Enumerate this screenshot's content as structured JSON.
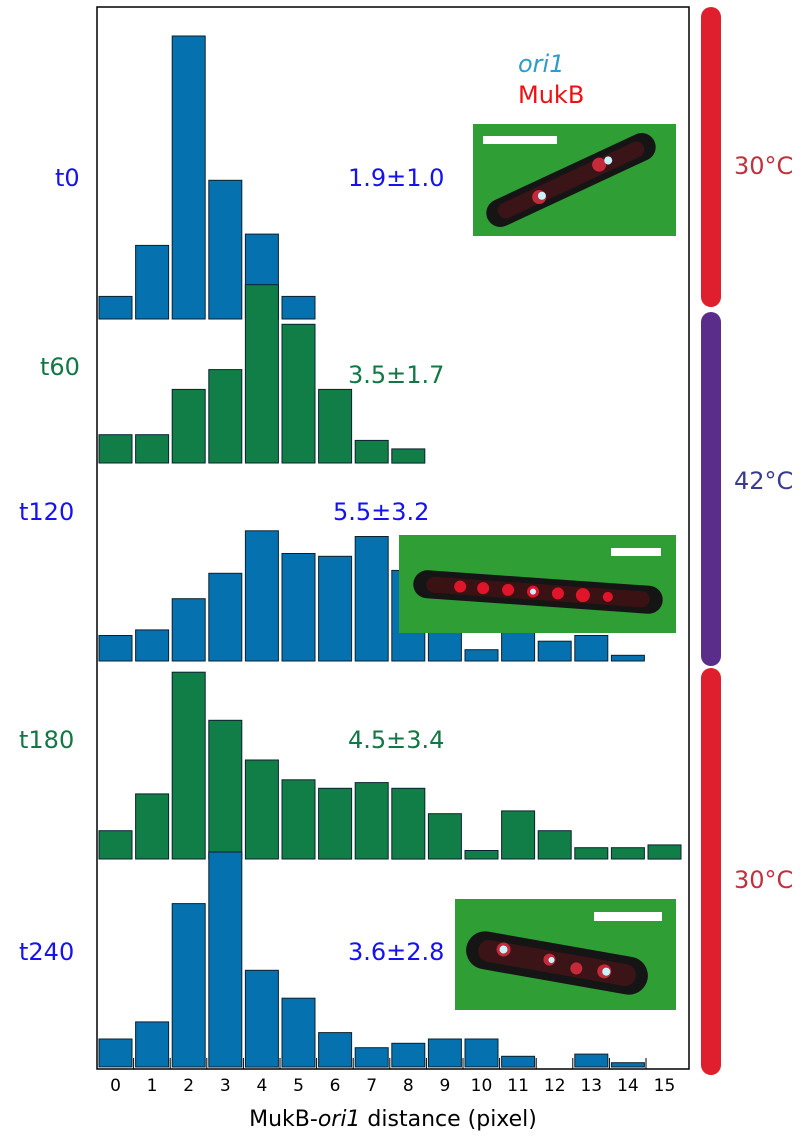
{
  "colors": {
    "blue_bar": "#0571ae",
    "green_bar": "#117d47",
    "blue_text": "#1412f0",
    "green_text": "#137745",
    "red_band": "#df1f2d",
    "purple_band": "#5a2d8a",
    "red_temp_text": "#c0313e",
    "purple_temp_text": "#3b3b8e",
    "ori1_text": "#2e9bc8",
    "mukb_text": "#ee1111",
    "micrograph_bg": "#2f9f35"
  },
  "legend": {
    "ori1": "ori1",
    "mukb": "MukB"
  },
  "xlabel": {
    "prefix": "MukB-",
    "italic": "ori1",
    "suffix": " distance (pixel)"
  },
  "temps": [
    {
      "label": "30°C",
      "color": "red"
    },
    {
      "label": "42°C",
      "color": "purple"
    },
    {
      "label": "30°C",
      "color": "red"
    }
  ],
  "chart_data": {
    "type": "bar",
    "categories": [
      "0",
      "1",
      "2",
      "3",
      "4",
      "5",
      "6",
      "7",
      "8",
      "9",
      "10",
      "11",
      "12",
      "13",
      "14",
      "15"
    ],
    "xlabel": "MukB-ori1 distance (pixel)",
    "series": [
      {
        "name": "t0",
        "stat": "1.9±1.0",
        "color": "blue",
        "values": [
          0.08,
          0.26,
          1.0,
          0.49,
          0.3,
          0.08,
          0,
          0,
          0,
          0,
          0,
          0,
          0,
          0,
          0,
          0
        ]
      },
      {
        "name": "t60",
        "stat": "3.5±1.7",
        "color": "green",
        "values": [
          0.1,
          0.1,
          0.26,
          0.33,
          0.63,
          0.49,
          0.26,
          0.08,
          0.05,
          0,
          0,
          0,
          0,
          0,
          0,
          0
        ]
      },
      {
        "name": "t120",
        "stat": "5.5±3.2",
        "color": "blue",
        "values": [
          0.09,
          0.11,
          0.22,
          0.31,
          0.46,
          0.38,
          0.37,
          0.44,
          0.32,
          0.19,
          0.04,
          0.17,
          0.07,
          0.09,
          0.02,
          0
        ]
      },
      {
        "name": "t180",
        "stat": "4.5±3.4",
        "color": "green",
        "values": [
          0.1,
          0.23,
          0.66,
          0.49,
          0.35,
          0.28,
          0.25,
          0.27,
          0.25,
          0.16,
          0.03,
          0.17,
          0.1,
          0.04,
          0.04,
          0.05
        ]
      },
      {
        "name": "t240",
        "stat": "3.6±2.8",
        "color": "blue",
        "values": [
          0.13,
          0.21,
          0.76,
          1.0,
          0.45,
          0.32,
          0.16,
          0.09,
          0.11,
          0.13,
          0.13,
          0.05,
          0,
          0.06,
          0.02,
          0
        ]
      }
    ]
  }
}
